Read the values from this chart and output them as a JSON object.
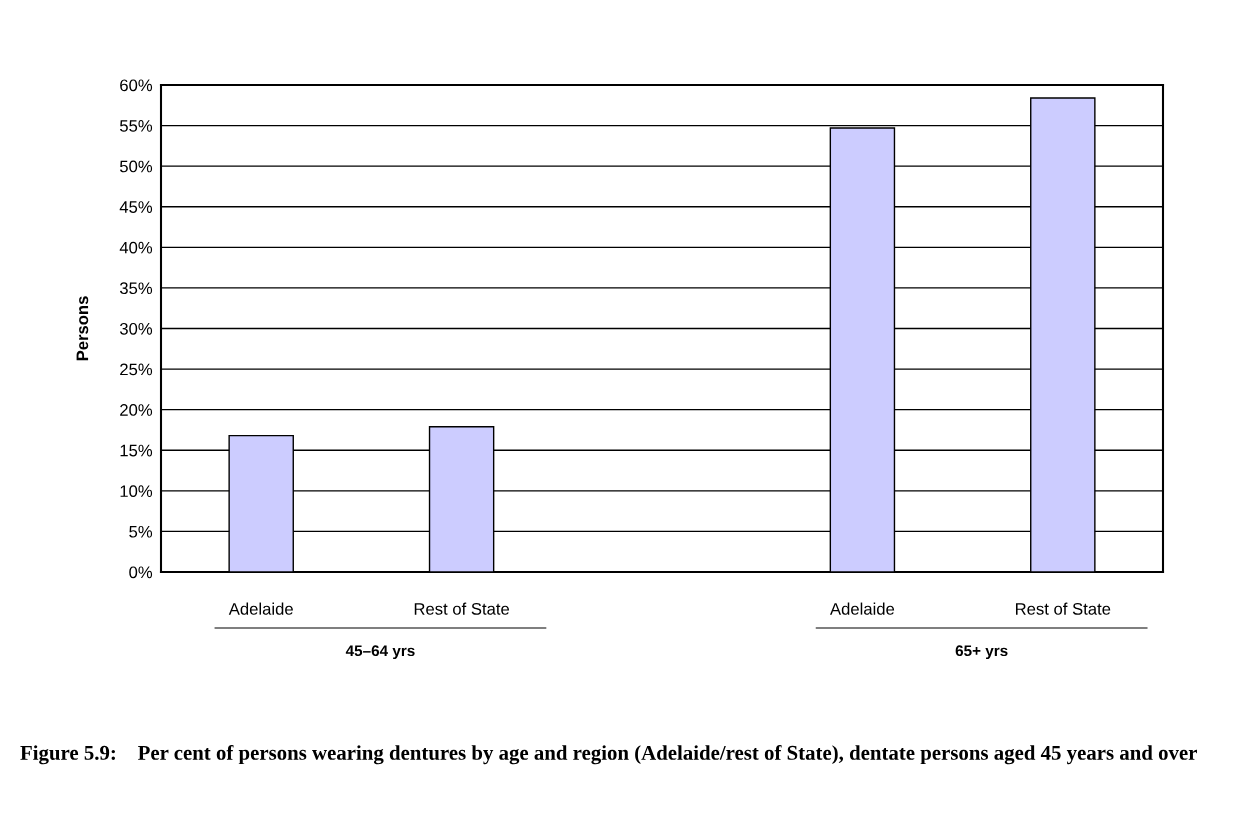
{
  "chart_data": {
    "type": "bar",
    "categories": [
      "Adelaide",
      "Rest of State",
      null,
      "Adelaide",
      "Rest of State"
    ],
    "values": [
      16.8,
      17.9,
      null,
      54.7,
      58.4
    ],
    "color": "#ccccff",
    "ylabel": "Persons",
    "ylim": [
      0,
      60
    ],
    "yticks": [
      {
        "value": 0,
        "label": "0%"
      },
      {
        "value": 5,
        "label": "5%"
      },
      {
        "value": 10,
        "label": "10%"
      },
      {
        "value": 15,
        "label": "15%"
      },
      {
        "value": 20,
        "label": "20%"
      },
      {
        "value": 25,
        "label": "25%"
      },
      {
        "value": 30,
        "label": "30%"
      },
      {
        "value": 35,
        "label": "35%"
      },
      {
        "value": 40,
        "label": "40%"
      },
      {
        "value": 45,
        "label": "45%"
      },
      {
        "value": 50,
        "label": "50%"
      },
      {
        "value": 55,
        "label": "55%"
      },
      {
        "value": 60,
        "label": "60%"
      }
    ],
    "grid": "y",
    "annotations": [
      "45–64 yrs",
      "65+ yrs",
      "Figure 5.9:    Per cent of persons wearing dentures by age and region (Adelaide/rest of State), dentate persons aged 45 years and over"
    ]
  }
}
